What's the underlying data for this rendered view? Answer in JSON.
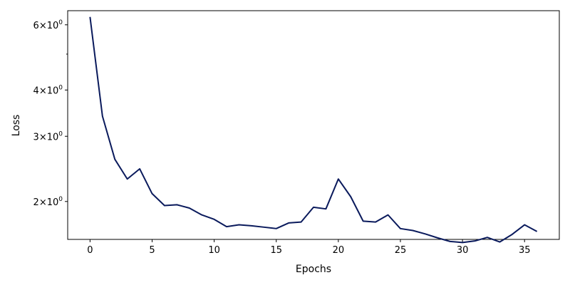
{
  "chart_data": {
    "type": "line",
    "title": "",
    "xlabel": "Epochs",
    "ylabel": "Loss",
    "yscale": "log",
    "xlim": [
      -1.8,
      37.8
    ],
    "ylim": [
      1.58,
      6.55
    ],
    "x_ticks": [
      0,
      5,
      10,
      15,
      20,
      25,
      30,
      35
    ],
    "y_ticks": [
      {
        "value": 2,
        "base": "2",
        "exp": "0"
      },
      {
        "value": 3,
        "base": "3",
        "exp": "0"
      },
      {
        "value": 4,
        "base": "4",
        "exp": "0"
      },
      {
        "value": 6,
        "base": "6",
        "exp": "0"
      }
    ],
    "y_minor_ticks": [
      5
    ],
    "grid": false,
    "line_color": "#0a1a5c",
    "series": [
      {
        "x": [
          0,
          1,
          2,
          3,
          4,
          5,
          6,
          7,
          8,
          9,
          10,
          11,
          12,
          13,
          14,
          15,
          16,
          17,
          18,
          19,
          20,
          21,
          22,
          23,
          24,
          25,
          26,
          27,
          28,
          29,
          30,
          31,
          32,
          33,
          34,
          35,
          36
        ],
        "values": [
          6.3,
          3.4,
          2.6,
          2.3,
          2.45,
          2.1,
          1.95,
          1.96,
          1.92,
          1.84,
          1.79,
          1.71,
          1.73,
          1.72,
          1.705,
          1.69,
          1.75,
          1.76,
          1.93,
          1.91,
          2.3,
          2.06,
          1.77,
          1.76,
          1.84,
          1.69,
          1.67,
          1.635,
          1.595,
          1.56,
          1.55,
          1.565,
          1.6,
          1.555,
          1.63,
          1.73,
          1.66
        ]
      }
    ]
  }
}
